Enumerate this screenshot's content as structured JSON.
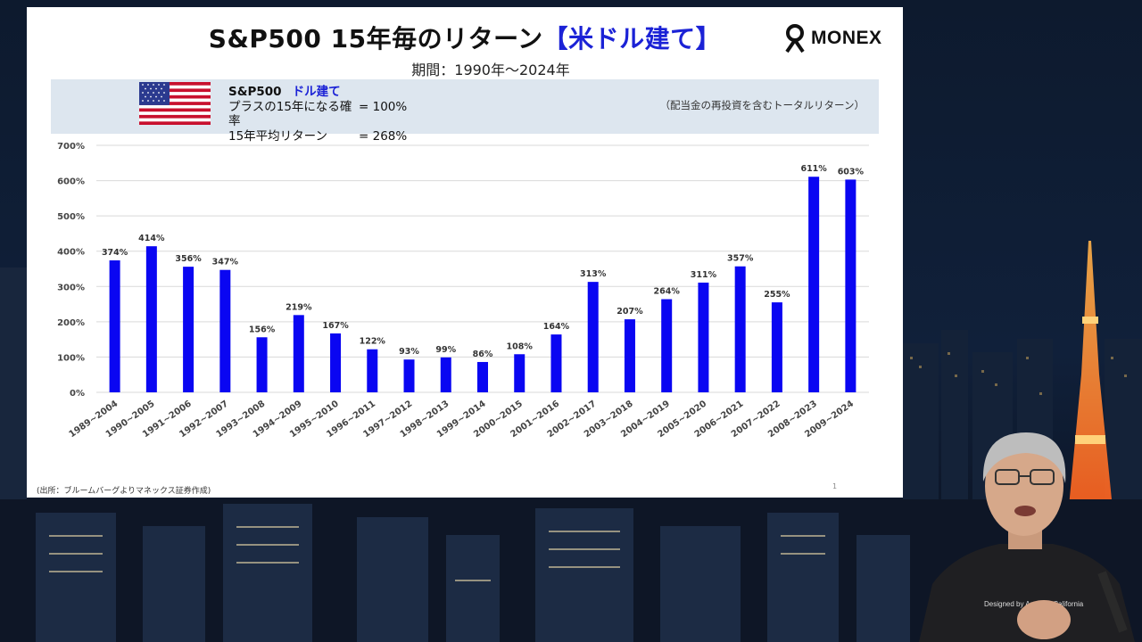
{
  "slide": {
    "title_main": "S&P500 15年毎のリターン",
    "title_highlight": "【米ドル建て】",
    "subtitle": "期間：1990年～2024年",
    "logo": "MONEX",
    "info": {
      "name": "S&P500",
      "tag": "ドル建て",
      "row1_key": "プラスの15年になる確率",
      "row1_val": "= 100%",
      "row2_key": "15年平均リターン",
      "row2_val": "= 268%"
    },
    "note": "（配当金の再投資を含むトータルリターン）",
    "source": "(出所：ブルームバーグよりマネックス証券作成)",
    "page": "1"
  },
  "chart_data": {
    "type": "bar",
    "categories": [
      "1989~2004",
      "1990~2005",
      "1991~2006",
      "1992~2007",
      "1993~2008",
      "1994~2009",
      "1995~2010",
      "1996~2011",
      "1997~2012",
      "1998~2013",
      "1999~2014",
      "2000~2015",
      "2001~2016",
      "2002~2017",
      "2003~2018",
      "2004~2019",
      "2005~2020",
      "2006~2021",
      "2007~2022",
      "2008~2023",
      "2009~2024"
    ],
    "values": [
      374,
      414,
      356,
      347,
      156,
      219,
      167,
      122,
      93,
      99,
      86,
      108,
      164,
      313,
      207,
      264,
      311,
      357,
      255,
      611,
      603
    ],
    "value_labels": [
      "374%",
      "414%",
      "356%",
      "347%",
      "156%",
      "219%",
      "167%",
      "122%",
      "93%",
      "99%",
      "86%",
      "108%",
      "164%",
      "313%",
      "207%",
      "264%",
      "311%",
      "357%",
      "255%",
      "611%",
      "603%"
    ],
    "ylim": [
      0,
      700
    ],
    "yticks": [
      "0%",
      "100%",
      "200%",
      "300%",
      "400%",
      "500%",
      "600%",
      "700%"
    ],
    "grid": true,
    "bar_color": "#0a06f2"
  }
}
